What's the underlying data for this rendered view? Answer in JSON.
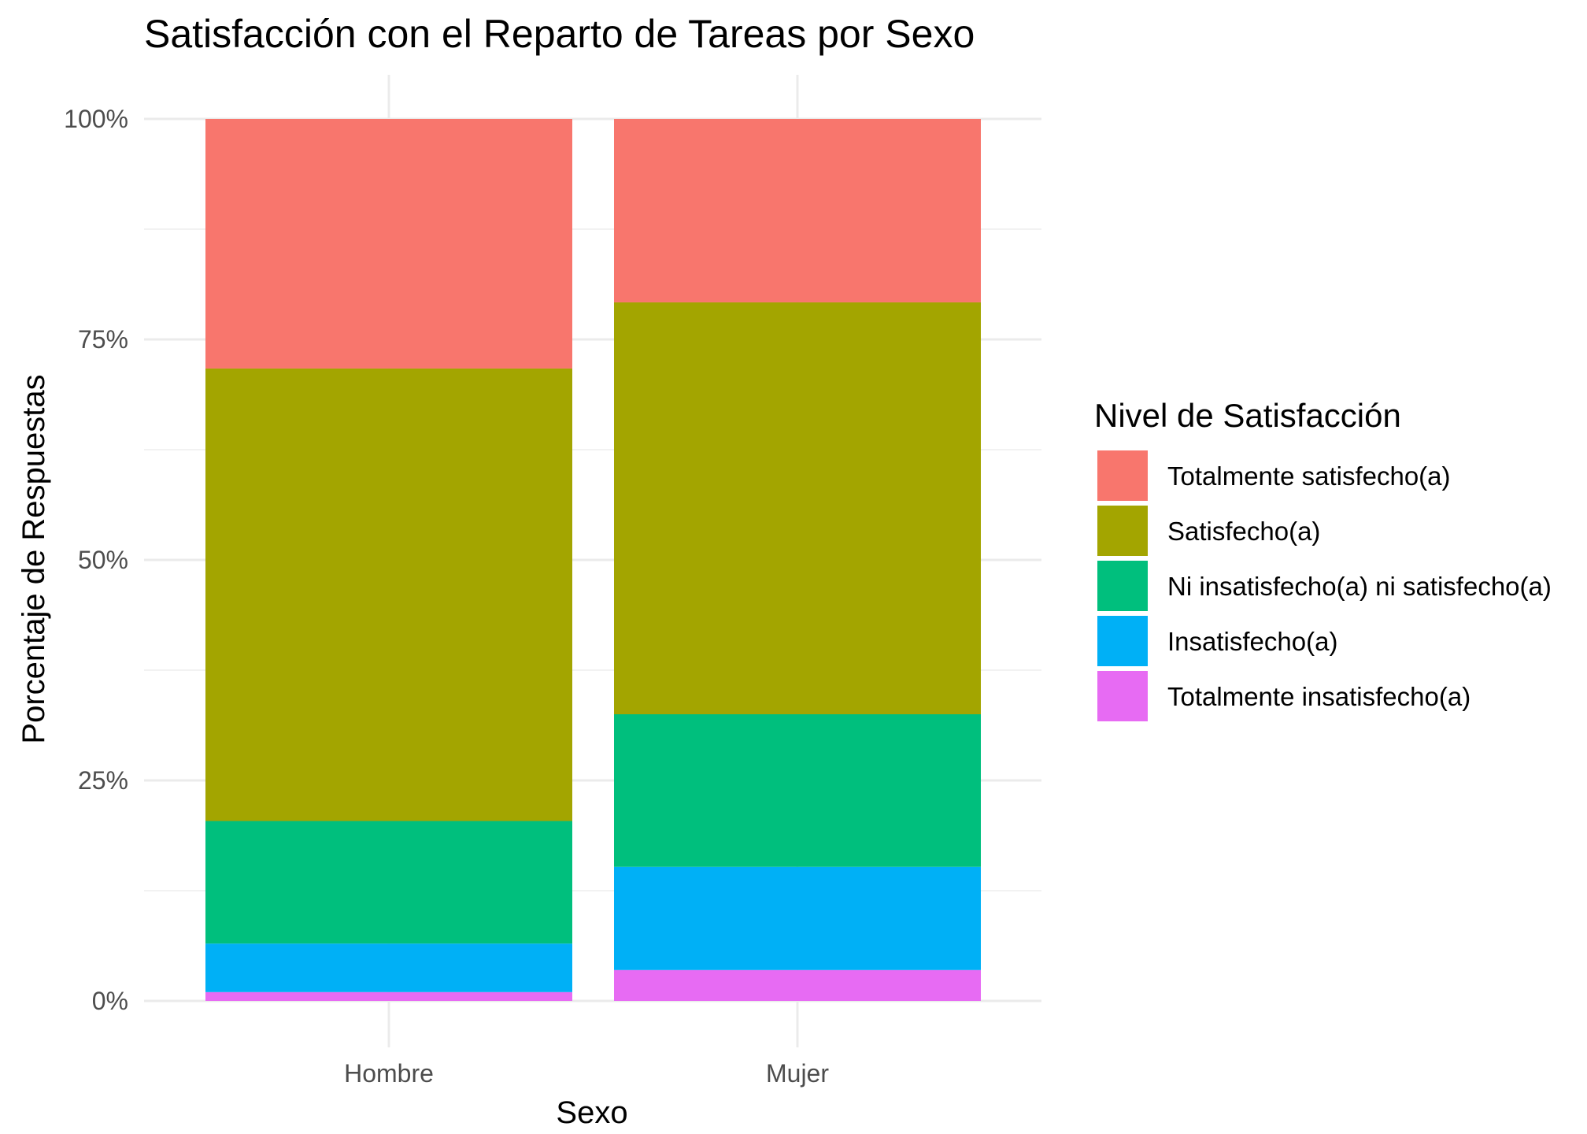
{
  "chart_data": {
    "type": "bar",
    "stacked": true,
    "normalized": true,
    "title": "Satisfacción con el Reparto de Tareas por Sexo",
    "xlabel": "Sexo",
    "ylabel": "Porcentaje de Respuestas",
    "categories": [
      "Hombre",
      "Mujer"
    ],
    "ylim": [
      0,
      1
    ],
    "yticks": [
      0,
      0.25,
      0.5,
      0.75,
      1
    ],
    "ytick_labels": [
      "0%",
      "25%",
      "50%",
      "75%",
      "100%"
    ],
    "grid": true,
    "legend": {
      "title": "Nivel de Satisfacción",
      "position": "right"
    },
    "series": [
      {
        "name": "Totalmente insatisfecho(a)",
        "color": "#E76BF3",
        "values": [
          0.01,
          0.035
        ]
      },
      {
        "name": "Insatisfecho(a)",
        "color": "#00B0F6",
        "values": [
          0.055,
          0.117
        ]
      },
      {
        "name": "Ni insatisfecho(a) ni satisfecho(a)",
        "color": "#00BF7D",
        "values": [
          0.139,
          0.173
        ]
      },
      {
        "name": "Satisfecho(a)",
        "color": "#A3A500",
        "values": [
          0.513,
          0.467
        ]
      },
      {
        "name": "Totalmente satisfecho(a)",
        "color": "#F8766D",
        "values": [
          0.283,
          0.208
        ]
      }
    ]
  }
}
